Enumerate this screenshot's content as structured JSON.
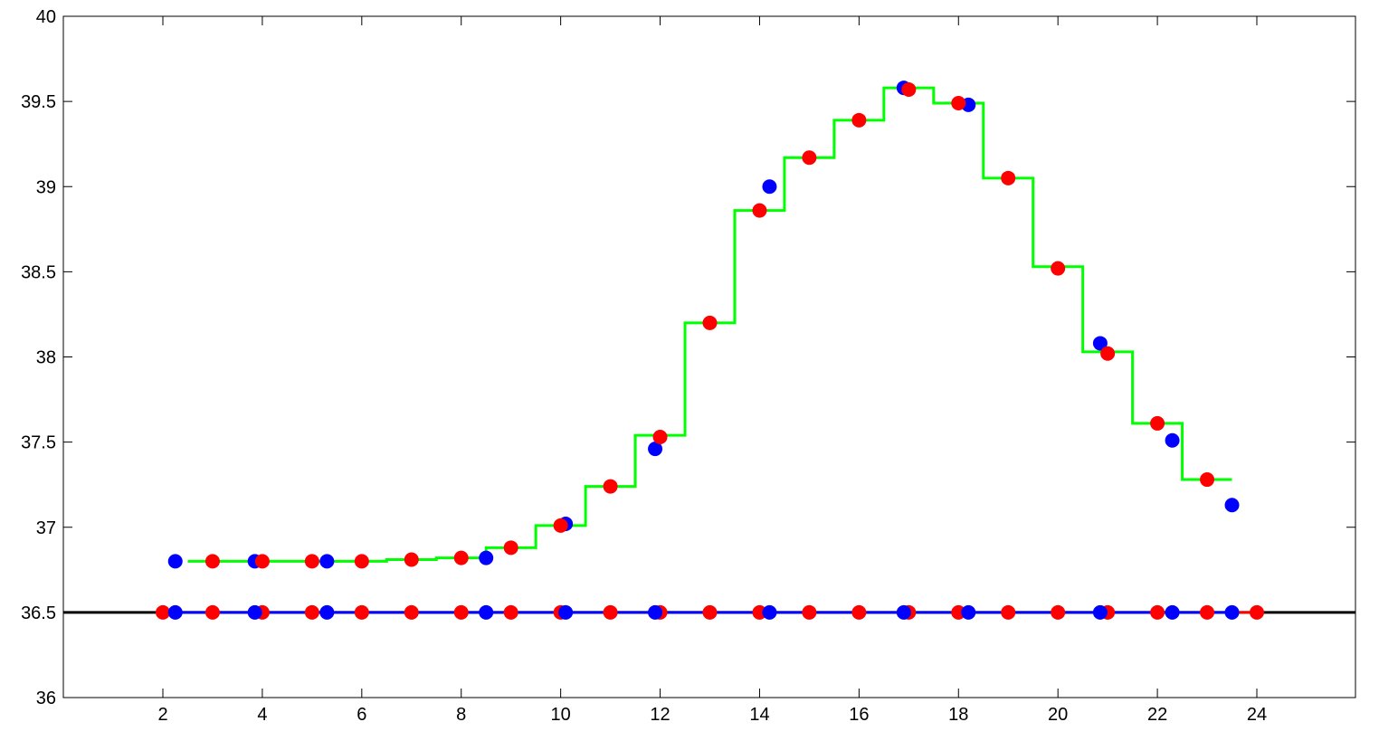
{
  "chart_data": {
    "type": "scatter",
    "title": "",
    "xlabel": "",
    "ylabel": "",
    "xlim": [
      0,
      24
    ],
    "ylim": [
      36,
      40
    ],
    "xticks": [
      2,
      4,
      6,
      8,
      10,
      12,
      14,
      16,
      18,
      20,
      22,
      24
    ],
    "yticks": [
      36,
      36.5,
      37,
      37.5,
      38,
      38.5,
      39,
      39.5,
      40
    ],
    "grid": false,
    "legend": "none",
    "baseline": {
      "y": 36.5,
      "color": "#000000"
    },
    "step_series": {
      "color": "#00ff00",
      "x": [
        2.5,
        3.5,
        4.5,
        5.5,
        6.5,
        7.5,
        8.5,
        9.5,
        10.5,
        11.5,
        12.5,
        13.5,
        14.5,
        15.5,
        16.5,
        17.5,
        18.5,
        19.5,
        20.5,
        21.5,
        22.5,
        23.5
      ],
      "y": [
        36.8,
        36.8,
        36.8,
        36.8,
        36.81,
        36.82,
        36.88,
        37.01,
        37.24,
        37.54,
        38.2,
        38.86,
        39.17,
        39.39,
        39.58,
        39.49,
        39.05,
        38.53,
        38.03,
        37.61,
        37.28,
        37.28
      ]
    },
    "red_points": {
      "color": "#ff0000",
      "x": [
        3,
        4,
        5,
        6,
        7,
        8,
        9,
        10,
        11,
        12,
        13,
        14,
        15,
        16,
        17,
        18,
        19,
        20,
        21,
        22,
        23
      ],
      "y": [
        36.8,
        36.8,
        36.8,
        36.8,
        36.81,
        36.82,
        36.88,
        37.01,
        37.24,
        37.53,
        38.2,
        38.86,
        39.17,
        39.39,
        39.57,
        39.49,
        39.05,
        38.52,
        38.02,
        37.61,
        37.28
      ]
    },
    "blue_points": {
      "color": "#0000ff",
      "x": [
        2.25,
        3.85,
        5.3,
        8.5,
        10.1,
        11.9,
        14.2,
        16.9,
        18.2,
        20.85,
        22.3,
        23.5
      ],
      "y": [
        36.8,
        36.8,
        36.8,
        36.82,
        37.02,
        37.46,
        39.0,
        39.58,
        39.48,
        38.08,
        37.51,
        37.13
      ]
    },
    "baseline_red_points": {
      "color": "#ff0000",
      "x": [
        2,
        3,
        4,
        5,
        6,
        7,
        8,
        9,
        10,
        11,
        12,
        13,
        14,
        15,
        16,
        17,
        18,
        19,
        20,
        21,
        22,
        23,
        24
      ],
      "y": 36.5
    },
    "baseline_blue_points": {
      "color": "#0000ff",
      "x": [
        2.25,
        3.85,
        5.3,
        8.5,
        10.1,
        11.9,
        14.2,
        16.9,
        18.2,
        20.85,
        22.3,
        23.5
      ],
      "y": 36.5
    },
    "baseline_blue_line": {
      "color": "#0000ff",
      "x": [
        2.25,
        23.5
      ],
      "y": 36.5
    },
    "baseline_red_line": {
      "color": "#ff0000",
      "x": [
        23.5,
        24
      ],
      "y": 36.5
    }
  }
}
